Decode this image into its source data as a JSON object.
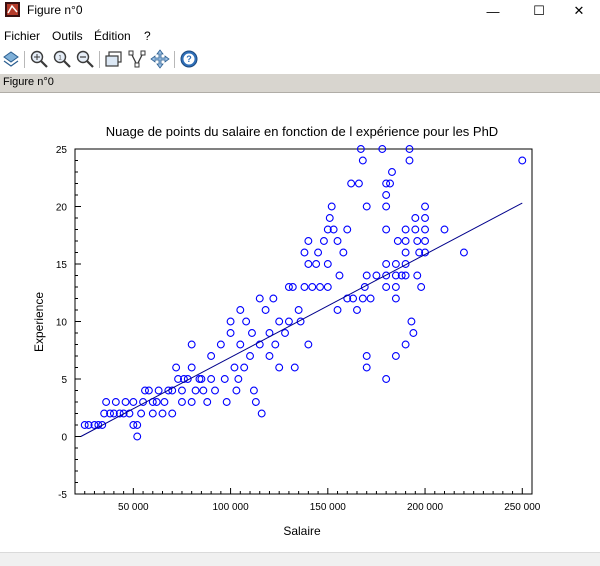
{
  "window": {
    "title": "Figure n°0",
    "controls": {
      "minimize": "—",
      "maximize": "☐",
      "close": "✕"
    }
  },
  "menu": {
    "items": [
      "Fichier",
      "Outils",
      "Édition",
      "?"
    ]
  },
  "toolbar": {
    "icons": [
      "rotate-icon",
      "zoom-in-icon",
      "zoom-reset-icon",
      "zoom-out-icon",
      "new-window-icon",
      "data-tip-icon",
      "pan-icon",
      "help-icon"
    ]
  },
  "figure_tab": {
    "label": "Figure n°0"
  },
  "colors": {
    "marker": "#0000ff",
    "line": "#00008b",
    "axis": "#000000",
    "tab_bg": "#d8d5cf"
  },
  "chart_data": {
    "type": "scatter",
    "title": "Nuage de points du salaire en fonction de l expérience pour les PhD",
    "xlabel": "Salaire",
    "ylabel": "Experience",
    "xlim": [
      20000,
      255000
    ],
    "ylim": [
      -5,
      25
    ],
    "xticks": [
      {
        "v": 50000,
        "label": "50 000"
      },
      {
        "v": 100000,
        "label": "100 000"
      },
      {
        "v": 150000,
        "label": "150 000"
      },
      {
        "v": 200000,
        "label": "200 000"
      },
      {
        "v": 250000,
        "label": "250 000"
      }
    ],
    "yticks": [
      {
        "v": -5,
        "label": "-5"
      },
      {
        "v": 0,
        "label": "0"
      },
      {
        "v": 5,
        "label": "5"
      },
      {
        "v": 10,
        "label": "10"
      },
      {
        "v": 15,
        "label": "15"
      },
      {
        "v": 20,
        "label": "20"
      },
      {
        "v": 25,
        "label": "25"
      }
    ],
    "grid": false,
    "series": [
      {
        "kind": "scatter",
        "marker": "open-circle",
        "points": [
          [
            25000,
            1
          ],
          [
            27000,
            1
          ],
          [
            30000,
            1
          ],
          [
            32000,
            1
          ],
          [
            34000,
            1
          ],
          [
            35000,
            2
          ],
          [
            36000,
            3
          ],
          [
            38000,
            2
          ],
          [
            40000,
            2
          ],
          [
            41000,
            3
          ],
          [
            43000,
            2
          ],
          [
            45000,
            2
          ],
          [
            46000,
            3
          ],
          [
            48000,
            2
          ],
          [
            50000,
            3
          ],
          [
            50000,
            1
          ],
          [
            52000,
            1
          ],
          [
            52000,
            0
          ],
          [
            54000,
            2
          ],
          [
            55000,
            3
          ],
          [
            56000,
            4
          ],
          [
            58000,
            4
          ],
          [
            60000,
            2
          ],
          [
            60000,
            3
          ],
          [
            62000,
            3
          ],
          [
            63000,
            4
          ],
          [
            65000,
            2
          ],
          [
            66000,
            3
          ],
          [
            68000,
            4
          ],
          [
            70000,
            4
          ],
          [
            70000,
            2
          ],
          [
            72000,
            6
          ],
          [
            73000,
            5
          ],
          [
            75000,
            4
          ],
          [
            75000,
            3
          ],
          [
            76000,
            5
          ],
          [
            78000,
            5
          ],
          [
            80000,
            8
          ],
          [
            80000,
            6
          ],
          [
            80000,
            3
          ],
          [
            82000,
            4
          ],
          [
            84000,
            5
          ],
          [
            85000,
            5
          ],
          [
            86000,
            4
          ],
          [
            88000,
            3
          ],
          [
            90000,
            5
          ],
          [
            90000,
            7
          ],
          [
            92000,
            4
          ],
          [
            95000,
            8
          ],
          [
            97000,
            5
          ],
          [
            98000,
            3
          ],
          [
            100000,
            10
          ],
          [
            100000,
            9
          ],
          [
            102000,
            6
          ],
          [
            103000,
            4
          ],
          [
            104000,
            5
          ],
          [
            105000,
            8
          ],
          [
            105000,
            11
          ],
          [
            107000,
            6
          ],
          [
            108000,
            10
          ],
          [
            110000,
            7
          ],
          [
            111000,
            9
          ],
          [
            112000,
            4
          ],
          [
            113000,
            3
          ],
          [
            115000,
            8
          ],
          [
            115000,
            12
          ],
          [
            116000,
            2
          ],
          [
            118000,
            11
          ],
          [
            120000,
            9
          ],
          [
            120000,
            7
          ],
          [
            122000,
            12
          ],
          [
            123000,
            8
          ],
          [
            125000,
            10
          ],
          [
            125000,
            6
          ],
          [
            128000,
            9
          ],
          [
            130000,
            13
          ],
          [
            130000,
            10
          ],
          [
            132000,
            13
          ],
          [
            133000,
            6
          ],
          [
            135000,
            11
          ],
          [
            136000,
            10
          ],
          [
            138000,
            13
          ],
          [
            138000,
            16
          ],
          [
            140000,
            17
          ],
          [
            140000,
            15
          ],
          [
            140000,
            8
          ],
          [
            142000,
            13
          ],
          [
            144000,
            15
          ],
          [
            145000,
            16
          ],
          [
            146000,
            13
          ],
          [
            148000,
            17
          ],
          [
            150000,
            18
          ],
          [
            150000,
            15
          ],
          [
            150000,
            13
          ],
          [
            151000,
            19
          ],
          [
            152000,
            20
          ],
          [
            153000,
            18
          ],
          [
            155000,
            11
          ],
          [
            155000,
            17
          ],
          [
            156000,
            14
          ],
          [
            158000,
            16
          ],
          [
            160000,
            18
          ],
          [
            160000,
            12
          ],
          [
            162000,
            22
          ],
          [
            163000,
            12
          ],
          [
            165000,
            11
          ],
          [
            166000,
            22
          ],
          [
            167000,
            25
          ],
          [
            168000,
            24
          ],
          [
            168000,
            12
          ],
          [
            169000,
            13
          ],
          [
            170000,
            20
          ],
          [
            170000,
            14
          ],
          [
            170000,
            7
          ],
          [
            170000,
            6
          ],
          [
            172000,
            12
          ],
          [
            175000,
            14
          ],
          [
            178000,
            25
          ],
          [
            180000,
            22
          ],
          [
            180000,
            18
          ],
          [
            180000,
            21
          ],
          [
            180000,
            20
          ],
          [
            180000,
            15
          ],
          [
            180000,
            14
          ],
          [
            180000,
            13
          ],
          [
            180000,
            5
          ],
          [
            182000,
            22
          ],
          [
            183000,
            23
          ],
          [
            185000,
            15
          ],
          [
            185000,
            14
          ],
          [
            185000,
            13
          ],
          [
            185000,
            12
          ],
          [
            185000,
            7
          ],
          [
            186000,
            17
          ],
          [
            188000,
            14
          ],
          [
            190000,
            18
          ],
          [
            190000,
            17
          ],
          [
            190000,
            16
          ],
          [
            190000,
            15
          ],
          [
            190000,
            14
          ],
          [
            190000,
            8
          ],
          [
            192000,
            25
          ],
          [
            192000,
            24
          ],
          [
            193000,
            10
          ],
          [
            194000,
            9
          ],
          [
            195000,
            19
          ],
          [
            195000,
            18
          ],
          [
            196000,
            14
          ],
          [
            196000,
            17
          ],
          [
            197000,
            16
          ],
          [
            198000,
            13
          ],
          [
            200000,
            20
          ],
          [
            200000,
            19
          ],
          [
            200000,
            18
          ],
          [
            200000,
            17
          ],
          [
            200000,
            16
          ],
          [
            210000,
            18
          ],
          [
            220000,
            16
          ],
          [
            250000,
            24
          ]
        ]
      },
      {
        "kind": "line",
        "points": [
          [
            23000,
            0
          ],
          [
            250000,
            20.3
          ]
        ]
      }
    ]
  }
}
